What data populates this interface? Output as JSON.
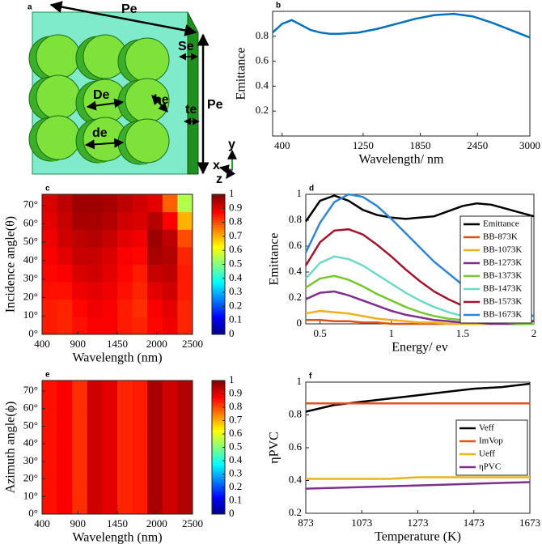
{
  "diagram": {
    "panel": "a",
    "labels": [
      "Pe",
      "Se",
      "Pe",
      "De",
      "he",
      "te",
      "de"
    ],
    "axes": [
      "x",
      "y",
      "z"
    ]
  },
  "chart_data": [
    {
      "panel": "b",
      "type": "line",
      "xlabel": "Wavelength/ nm",
      "ylabel": "Emittance",
      "xlim": [
        300,
        3000
      ],
      "xticks": [
        400,
        1250,
        1850,
        2450,
        3000
      ],
      "ylim": [
        0,
        1
      ],
      "yticks": [
        0.2,
        0.4,
        0.6,
        0.8
      ],
      "x": [
        300,
        400,
        500,
        600,
        700,
        800,
        900,
        1000,
        1200,
        1400,
        1600,
        1800,
        2000,
        2200,
        2400,
        2600,
        2800,
        3000
      ],
      "series": [
        {
          "color": "#0072bd",
          "values": [
            0.83,
            0.9,
            0.93,
            0.89,
            0.85,
            0.83,
            0.82,
            0.82,
            0.83,
            0.86,
            0.9,
            0.94,
            0.97,
            0.98,
            0.96,
            0.91,
            0.85,
            0.79
          ]
        }
      ]
    },
    {
      "panel": "c",
      "type": "heatmap",
      "xlabel": "Wavelength (nm)",
      "ylabel": "Incidence angle(θ)",
      "xlim": [
        400,
        2500
      ],
      "xticks": [
        400,
        900,
        1450,
        2000,
        2500
      ],
      "ylim": [
        0,
        76
      ],
      "yticks": [
        {
          "value": 0,
          "label": "0°"
        },
        {
          "value": 10,
          "label": "10°"
        },
        {
          "value": 20,
          "label": "20°"
        },
        {
          "value": 30,
          "label": "30°"
        },
        {
          "value": 40,
          "label": "40°"
        },
        {
          "value": 50,
          "label": "50°"
        },
        {
          "value": 60,
          "label": "60°"
        },
        {
          "value": 70,
          "label": "70°"
        }
      ],
      "x": [
        505,
        715,
        925,
        1135,
        1345,
        1555,
        1765,
        1975,
        2185,
        2395
      ],
      "y": [
        4.75,
        14.25,
        23.75,
        33.25,
        42.75,
        52.25,
        61.75,
        71.25
      ],
      "z": [
        [
          0.85,
          0.84,
          0.86,
          0.88,
          0.88,
          0.85,
          0.84,
          0.87,
          0.89,
          0.84
        ],
        [
          0.85,
          0.84,
          0.87,
          0.89,
          0.88,
          0.85,
          0.83,
          0.88,
          0.9,
          0.84
        ],
        [
          0.86,
          0.86,
          0.89,
          0.9,
          0.89,
          0.86,
          0.84,
          0.9,
          0.92,
          0.85
        ],
        [
          0.87,
          0.88,
          0.91,
          0.92,
          0.9,
          0.87,
          0.85,
          0.93,
          0.94,
          0.85
        ],
        [
          0.88,
          0.9,
          0.93,
          0.93,
          0.91,
          0.88,
          0.87,
          0.96,
          0.95,
          0.84
        ],
        [
          0.89,
          0.92,
          0.94,
          0.95,
          0.93,
          0.9,
          0.89,
          0.97,
          0.94,
          0.8
        ],
        [
          0.9,
          0.93,
          0.96,
          0.96,
          0.95,
          0.92,
          0.91,
          0.95,
          0.88,
          0.7
        ],
        [
          0.91,
          0.94,
          0.97,
          0.97,
          0.96,
          0.94,
          0.92,
          0.9,
          0.78,
          0.55
        ]
      ],
      "colormap": "jet",
      "clim": [
        0,
        1
      ],
      "cticks": [
        0,
        0.1,
        0.2,
        0.3,
        0.4,
        0.5,
        0.6,
        0.7,
        0.8,
        0.9,
        1
      ]
    },
    {
      "panel": "d",
      "type": "line",
      "xlabel": "Energy/ ev",
      "ylabel": "Emittance",
      "xlim": [
        0.4,
        2
      ],
      "xticks": [
        0.5,
        1,
        1.5,
        2
      ],
      "ylim": [
        0,
        1
      ],
      "yticks": [
        0,
        0.2,
        0.4,
        0.6,
        0.8,
        1
      ],
      "legend": "lower right",
      "x": [
        0.4,
        0.5,
        0.6,
        0.7,
        0.8,
        0.9,
        1.0,
        1.1,
        1.2,
        1.3,
        1.4,
        1.5,
        1.6,
        1.7,
        1.8,
        1.9,
        2.0
      ],
      "series": [
        {
          "name": "Emittance",
          "color": "#000000",
          "values": [
            0.79,
            0.95,
            0.99,
            0.95,
            0.88,
            0.84,
            0.82,
            0.81,
            0.82,
            0.83,
            0.87,
            0.91,
            0.93,
            0.92,
            0.89,
            0.86,
            0.83
          ]
        },
        {
          "name": "BB-873K",
          "color": "#d95319",
          "values": [
            0.03,
            0.03,
            0.02,
            0.02,
            0.01,
            0.01,
            0,
            0,
            0,
            0,
            0,
            0,
            0,
            0,
            0,
            0,
            0
          ]
        },
        {
          "name": "BB-1073K",
          "color": "#edb120",
          "values": [
            0.08,
            0.1,
            0.09,
            0.08,
            0.06,
            0.04,
            0.03,
            0.02,
            0.01,
            0.01,
            0,
            0,
            0,
            0,
            0,
            0,
            0
          ]
        },
        {
          "name": "BB-1273K",
          "color": "#7e2f8e",
          "values": [
            0.19,
            0.24,
            0.25,
            0.22,
            0.18,
            0.14,
            0.1,
            0.07,
            0.05,
            0.03,
            0.02,
            0.01,
            0.01,
            0,
            0,
            0,
            0
          ]
        },
        {
          "name": "BB-1373K",
          "color": "#77c830",
          "values": [
            0.28,
            0.35,
            0.37,
            0.34,
            0.29,
            0.23,
            0.18,
            0.13,
            0.09,
            0.06,
            0.04,
            0.03,
            0.02,
            0.01,
            0.01,
            0,
            0
          ]
        },
        {
          "name": "BB-1473K",
          "color": "#6fd9c8",
          "values": [
            0.35,
            0.47,
            0.52,
            0.5,
            0.45,
            0.38,
            0.31,
            0.24,
            0.18,
            0.13,
            0.09,
            0.06,
            0.04,
            0.03,
            0.02,
            0.01,
            0.01
          ]
        },
        {
          "name": "BB-1573K",
          "color": "#a2142f",
          "values": [
            0.45,
            0.63,
            0.72,
            0.73,
            0.69,
            0.61,
            0.52,
            0.42,
            0.33,
            0.25,
            0.19,
            0.14,
            0.1,
            0.07,
            0.05,
            0.03,
            0.02
          ]
        },
        {
          "name": "BB-1673K",
          "color": "#2f86d6",
          "values": [
            0.55,
            0.78,
            0.94,
            1.0,
            0.98,
            0.91,
            0.81,
            0.7,
            0.59,
            0.48,
            0.39,
            0.3,
            0.23,
            0.17,
            0.12,
            0.09,
            0.06
          ]
        }
      ]
    },
    {
      "panel": "e",
      "type": "heatmap",
      "xlabel": "Wavelength (nm)",
      "ylabel": "Azimuth angle(ϕ)",
      "xlim": [
        400,
        2500
      ],
      "xticks": [
        400,
        900,
        1450,
        2000,
        2500
      ],
      "ylim": [
        0,
        76
      ],
      "yticks": [
        {
          "value": 0,
          "label": "0°"
        },
        {
          "value": 10,
          "label": "10°"
        },
        {
          "value": 20,
          "label": "20°"
        },
        {
          "value": 30,
          "label": "30°"
        },
        {
          "value": 40,
          "label": "40°"
        },
        {
          "value": 50,
          "label": "50°"
        },
        {
          "value": 60,
          "label": "60°"
        },
        {
          "value": 70,
          "label": "70°"
        }
      ],
      "x": [
        505,
        715,
        925,
        1135,
        1345,
        1555,
        1765,
        1975,
        2185,
        2395
      ],
      "y": [
        4.75,
        14.25,
        23.75,
        33.25,
        42.75,
        52.25,
        61.75,
        71.25
      ],
      "z": [
        [
          0.86,
          0.88,
          0.83,
          0.92,
          0.9,
          0.84,
          0.85,
          0.96,
          0.92,
          0.95
        ],
        [
          0.86,
          0.88,
          0.83,
          0.92,
          0.9,
          0.84,
          0.85,
          0.96,
          0.92,
          0.95
        ],
        [
          0.86,
          0.88,
          0.83,
          0.92,
          0.9,
          0.84,
          0.85,
          0.96,
          0.92,
          0.95
        ],
        [
          0.86,
          0.88,
          0.83,
          0.92,
          0.9,
          0.84,
          0.85,
          0.96,
          0.92,
          0.95
        ],
        [
          0.86,
          0.88,
          0.83,
          0.92,
          0.9,
          0.84,
          0.85,
          0.96,
          0.92,
          0.95
        ],
        [
          0.86,
          0.88,
          0.83,
          0.92,
          0.9,
          0.84,
          0.85,
          0.96,
          0.92,
          0.95
        ],
        [
          0.86,
          0.88,
          0.83,
          0.92,
          0.9,
          0.84,
          0.85,
          0.96,
          0.92,
          0.95
        ],
        [
          0.86,
          0.88,
          0.83,
          0.92,
          0.9,
          0.84,
          0.85,
          0.96,
          0.92,
          0.95
        ]
      ],
      "colormap": "jet",
      "clim": [
        0,
        1
      ],
      "cticks": [
        0,
        0.1,
        0.2,
        0.3,
        0.4,
        0.5,
        0.6,
        0.7,
        0.8,
        0.9,
        1
      ]
    },
    {
      "panel": "f",
      "type": "line",
      "xlabel": "Temperature (K)",
      "ylabel": "ηPVC",
      "xlim": [
        873,
        1673
      ],
      "xticks": [
        873,
        1073,
        1273,
        1473,
        1673
      ],
      "ylim": [
        0.2,
        1
      ],
      "yticks": [
        0.2,
        0.4,
        0.6,
        0.8,
        1
      ],
      "legend": "center right",
      "x": [
        873,
        973,
        1073,
        1173,
        1273,
        1373,
        1473,
        1573,
        1673
      ],
      "series": [
        {
          "name": "Veff",
          "color": "#000000",
          "values": [
            0.82,
            0.86,
            0.88,
            0.9,
            0.92,
            0.94,
            0.96,
            0.97,
            0.99
          ]
        },
        {
          "name": "ImVop",
          "color": "#e8501a",
          "values": [
            0.87,
            0.87,
            0.87,
            0.87,
            0.87,
            0.87,
            0.87,
            0.87,
            0.87
          ]
        },
        {
          "name": "Ueff",
          "color": "#edb120",
          "values": [
            0.41,
            0.41,
            0.41,
            0.41,
            0.42,
            0.42,
            0.42,
            0.42,
            0.42
          ]
        },
        {
          "name": "ηPVC",
          "color": "#7e2f8e",
          "values": [
            0.35,
            0.355,
            0.36,
            0.365,
            0.37,
            0.375,
            0.38,
            0.385,
            0.39
          ]
        }
      ]
    }
  ]
}
